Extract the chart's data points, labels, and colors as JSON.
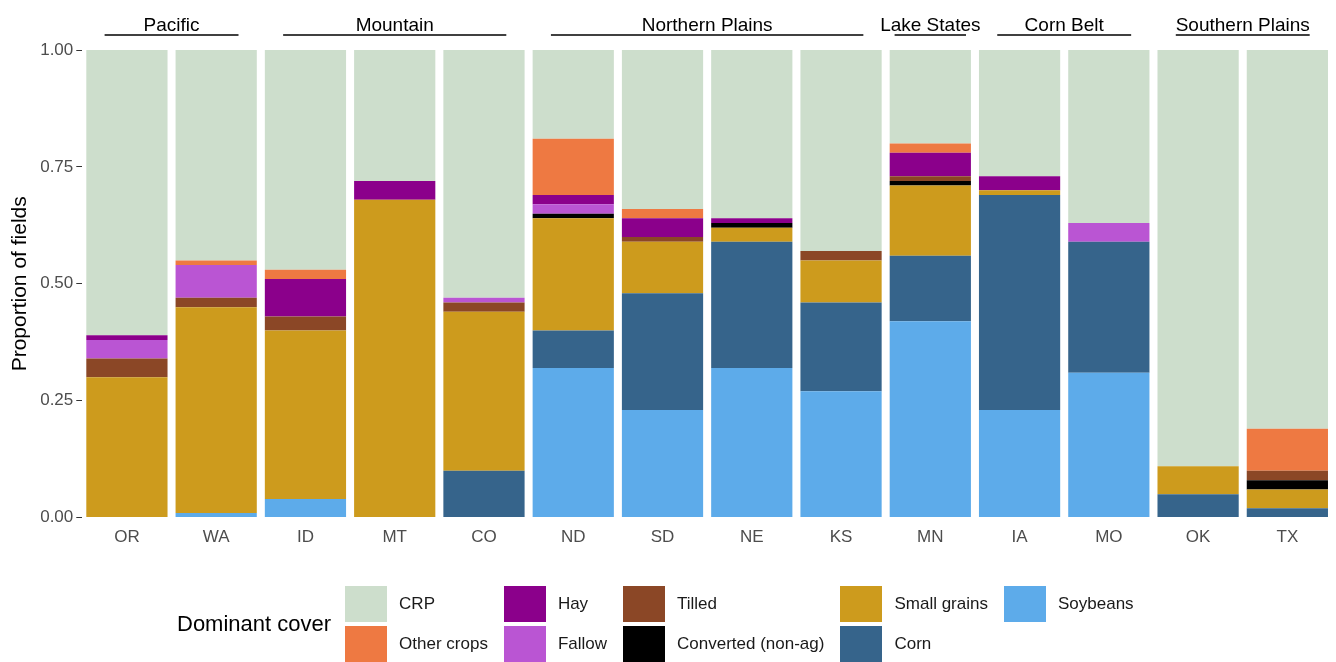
{
  "chart_data": {
    "type": "bar",
    "stacked": true,
    "ylabel": "Proportion of fields",
    "legend_title": "Dominant cover",
    "legend": "bottom",
    "grid": false,
    "categories": [
      "OR",
      "WA",
      "ID",
      "MT",
      "CO",
      "ND",
      "SD",
      "NE",
      "KS",
      "MN",
      "IA",
      "MO",
      "OK",
      "TX"
    ],
    "ylim": [
      0,
      1
    ],
    "yticks": [
      {
        "value": 0,
        "label": "0.00"
      },
      {
        "value": 0.25,
        "label": "0.25"
      },
      {
        "value": 0.5,
        "label": "0.50"
      },
      {
        "value": 0.75,
        "label": "0.75"
      },
      {
        "value": 1,
        "label": "1.00"
      }
    ],
    "annotations": [
      "Pacific",
      "Mountain",
      "Northern Plains",
      "Lake States",
      "Corn Belt",
      "Southern Plains"
    ],
    "series": [
      {
        "name": "Soybeans",
        "color": "#5dabea",
        "values": [
          0,
          0.01,
          0.04,
          0,
          0,
          0.32,
          0.23,
          0.32,
          0.27,
          0.42,
          0.23,
          0.31,
          0,
          0
        ]
      },
      {
        "name": "Corn",
        "color": "#36648b",
        "values": [
          0,
          0,
          0,
          0,
          0.1,
          0.08,
          0.25,
          0.27,
          0.19,
          0.14,
          0.46,
          0.28,
          0.05,
          0.02
        ]
      },
      {
        "name": "Small grains",
        "color": "#cd9b1d",
        "values": [
          0.3,
          0.44,
          0.36,
          0.68,
          0.34,
          0.24,
          0.11,
          0.03,
          0.09,
          0.15,
          0.01,
          0,
          0.06,
          0.04
        ]
      },
      {
        "name": "Converted (non-ag)",
        "color": "#000000",
        "values": [
          0,
          0,
          0,
          0,
          0,
          0.01,
          0,
          0.01,
          0,
          0.01,
          0,
          0,
          0,
          0.02
        ]
      },
      {
        "name": "Tilled",
        "color": "#8b4726",
        "values": [
          0.04,
          0.02,
          0.03,
          0,
          0.02,
          0,
          0.01,
          0,
          0.02,
          0.01,
          0,
          0,
          0,
          0.02
        ]
      },
      {
        "name": "Fallow",
        "color": "#ba55d3",
        "values": [
          0.04,
          0.07,
          0,
          0,
          0.01,
          0.02,
          0,
          0,
          0,
          0,
          0,
          0.04,
          0,
          0
        ]
      },
      {
        "name": "Hay",
        "color": "#8b008b",
        "values": [
          0.01,
          0,
          0.08,
          0.04,
          0,
          0.02,
          0.04,
          0.01,
          0,
          0.05,
          0.03,
          0,
          0,
          0
        ]
      },
      {
        "name": "Other crops",
        "color": "#ee7942",
        "values": [
          0,
          0.01,
          0.02,
          0,
          0,
          0.12,
          0.02,
          0,
          0,
          0.02,
          0,
          0,
          0,
          0.09
        ]
      },
      {
        "name": "CRP",
        "color": "#cddecc",
        "values": [
          0.61,
          0.45,
          0.47,
          0.28,
          0.53,
          0.19,
          0.34,
          0.36,
          0.43,
          0.2,
          0.27,
          0.37,
          0.89,
          0.81
        ]
      }
    ]
  }
}
